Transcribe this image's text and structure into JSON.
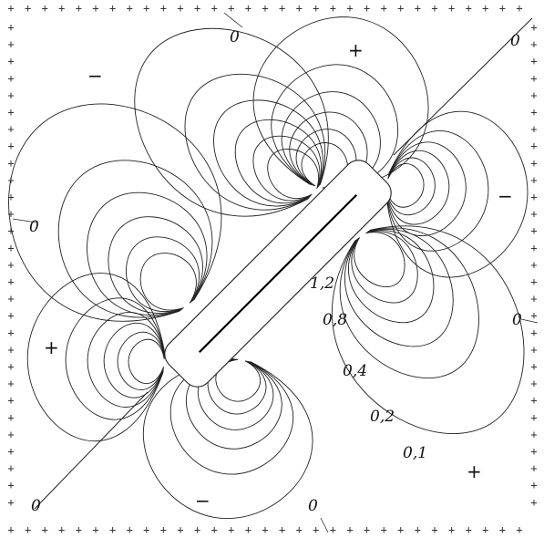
{
  "diagram": {
    "contour_levels": [
      "1,2",
      "0,8",
      "0,4",
      "0,2",
      "0,1"
    ],
    "zero_labels": [
      "0",
      "0",
      "0",
      "0",
      "0",
      "0"
    ],
    "region_signs": [
      "+",
      "−",
      "−",
      "+",
      "+",
      "−"
    ],
    "boundary_mark": "+",
    "colors": {
      "ink": "#222222",
      "background": "#ffffff"
    }
  }
}
